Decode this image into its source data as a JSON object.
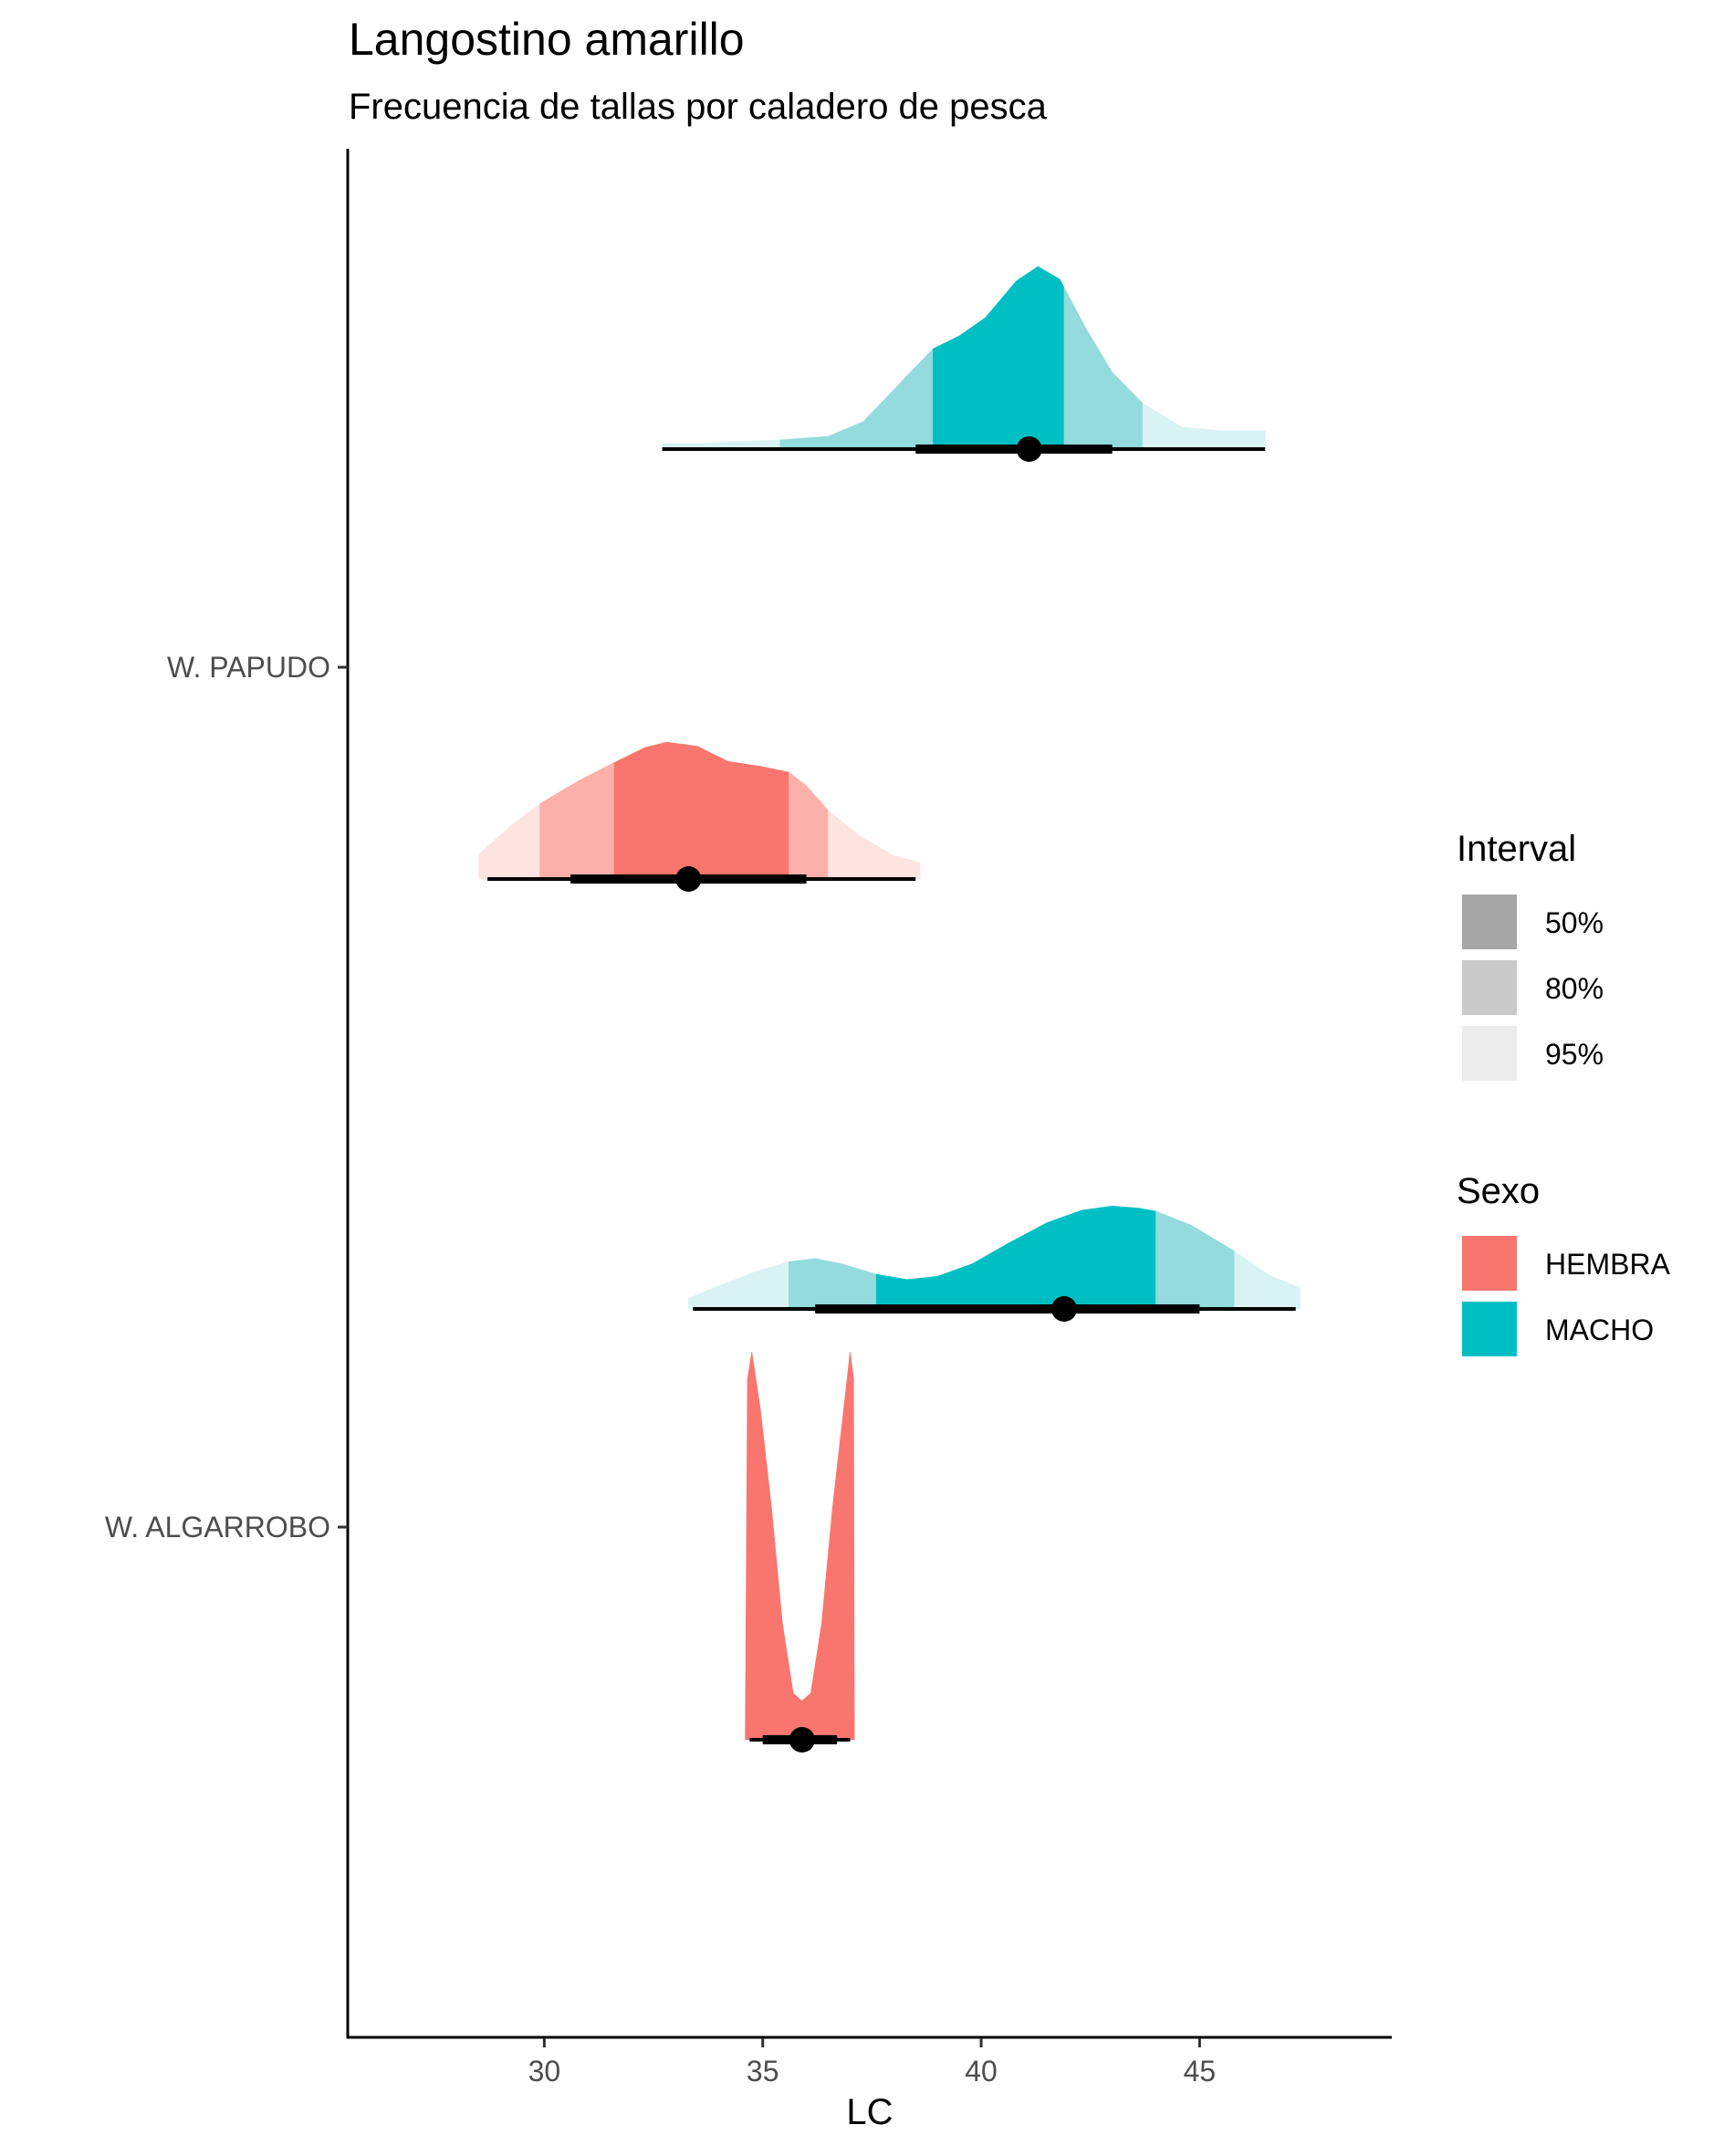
{
  "chart_data": {
    "type": "halfeye",
    "title": "Langostino amarillo",
    "subtitle": "Frecuencia de tallas por caladero de pesca",
    "xlabel": "LC",
    "ylabel": "",
    "xlim": [
      25.5,
      49.4
    ],
    "x_ticks": [
      30,
      35,
      40,
      45
    ],
    "categories": [
      "W. ALGARROBO",
      "W. PAPUDO"
    ],
    "grid": false,
    "legend_position": "right",
    "legend": {
      "interval_title": "Interval",
      "interval_items": [
        {
          "label": "50%",
          "color": "#a6a6a6"
        },
        {
          "label": "80%",
          "color": "#cacaca"
        },
        {
          "label": "95%",
          "color": "#ececec"
        }
      ],
      "sex_title": "Sexo",
      "sex_items": [
        {
          "label": "HEMBRA",
          "color": "#F8766D"
        },
        {
          "label": "MACHO",
          "color": "#00BFC4"
        }
      ]
    },
    "series": [
      {
        "category": "W. PAPUDO",
        "name": "MACHO",
        "color": "#00BFC4",
        "lightest": "#d9f2f3",
        "lighter": "#93dbdc",
        "median": 41.1,
        "interval_50": [
          38.9,
          41.9
        ],
        "interval_80": [
          35.4,
          43.7
        ],
        "interval_95": [
          32.7,
          46.5
        ],
        "point_interval_66": [
          38.5,
          43.0
        ],
        "point_interval_95": [
          32.7,
          46.5
        ],
        "density": [
          [
            32.7,
            0.03
          ],
          [
            33.5,
            0.03
          ],
          [
            34.2,
            0.04
          ],
          [
            35.4,
            0.05
          ],
          [
            36.5,
            0.07
          ],
          [
            37.3,
            0.15
          ],
          [
            38.1,
            0.35
          ],
          [
            38.9,
            0.55
          ],
          [
            39.5,
            0.62
          ],
          [
            40.1,
            0.72
          ],
          [
            40.8,
            0.92
          ],
          [
            41.3,
            1.0
          ],
          [
            41.8,
            0.93
          ],
          [
            42.4,
            0.66
          ],
          [
            43.0,
            0.42
          ],
          [
            43.7,
            0.25
          ],
          [
            44.6,
            0.12
          ],
          [
            45.5,
            0.1
          ],
          [
            46.5,
            0.1
          ]
        ]
      },
      {
        "category": "W. PAPUDO",
        "name": "HEMBRA",
        "color": "#F8766D",
        "lightest": "#fde4e1",
        "lighter": "#fbb0a9",
        "median": 33.3,
        "interval_50": [
          31.6,
          35.6
        ],
        "interval_80": [
          29.9,
          36.5
        ],
        "interval_95": [
          28.5,
          38.6
        ],
        "point_interval_66": [
          30.6,
          36.0
        ],
        "point_interval_95": [
          28.7,
          38.5
        ],
        "density": [
          [
            28.5,
            0.18
          ],
          [
            29.2,
            0.38
          ],
          [
            29.9,
            0.55
          ],
          [
            30.8,
            0.72
          ],
          [
            31.6,
            0.85
          ],
          [
            32.3,
            0.96
          ],
          [
            32.8,
            1.0
          ],
          [
            33.5,
            0.97
          ],
          [
            34.2,
            0.86
          ],
          [
            35.0,
            0.82
          ],
          [
            35.6,
            0.78
          ],
          [
            36.0,
            0.68
          ],
          [
            36.5,
            0.5
          ],
          [
            37.2,
            0.32
          ],
          [
            38.0,
            0.17
          ],
          [
            38.6,
            0.12
          ]
        ]
      },
      {
        "category": "W. ALGARROBO",
        "name": "MACHO",
        "color": "#00BFC4",
        "lightest": "#d9f2f3",
        "lighter": "#93dbdc",
        "median": 41.9,
        "interval_50": [
          37.6,
          44.0
        ],
        "interval_80": [
          35.6,
          45.8
        ],
        "interval_95": [
          33.3,
          47.3
        ],
        "point_interval_66": [
          36.2,
          45.0
        ],
        "point_interval_95": [
          33.4,
          47.2
        ],
        "density": [
          [
            33.3,
            0.1
          ],
          [
            34.0,
            0.22
          ],
          [
            34.8,
            0.35
          ],
          [
            35.6,
            0.45
          ],
          [
            36.2,
            0.48
          ],
          [
            36.8,
            0.43
          ],
          [
            37.6,
            0.33
          ],
          [
            38.3,
            0.28
          ],
          [
            39.0,
            0.31
          ],
          [
            39.8,
            0.43
          ],
          [
            40.6,
            0.62
          ],
          [
            41.5,
            0.82
          ],
          [
            42.3,
            0.94
          ],
          [
            43.0,
            0.98
          ],
          [
            43.6,
            0.96
          ],
          [
            44.0,
            0.93
          ],
          [
            44.8,
            0.8
          ],
          [
            45.8,
            0.55
          ],
          [
            46.6,
            0.32
          ],
          [
            47.3,
            0.2
          ]
        ]
      },
      {
        "category": "W. ALGARROBO",
        "name": "HEMBRA",
        "color": "#F8766D",
        "lightest": "#fde4e1",
        "lighter": "#fbb0a9",
        "median": 35.9,
        "interval_50": [
          34.6,
          37.1
        ],
        "interval_80": [
          34.6,
          37.1
        ],
        "interval_95": [
          34.6,
          37.1
        ],
        "point_interval_66": [
          35.0,
          36.7
        ],
        "point_interval_95": [
          34.7,
          37.0
        ],
        "density": [
          [
            34.6,
            0.0
          ],
          [
            34.65,
            0.93
          ],
          [
            34.75,
            1.0
          ],
          [
            34.95,
            0.85
          ],
          [
            35.2,
            0.6
          ],
          [
            35.45,
            0.3
          ],
          [
            35.7,
            0.12
          ],
          [
            35.9,
            0.1
          ],
          [
            36.1,
            0.12
          ],
          [
            36.35,
            0.3
          ],
          [
            36.6,
            0.6
          ],
          [
            36.85,
            0.85
          ],
          [
            37.0,
            1.0
          ],
          [
            37.08,
            0.93
          ],
          [
            37.1,
            0.0
          ]
        ]
      }
    ]
  }
}
